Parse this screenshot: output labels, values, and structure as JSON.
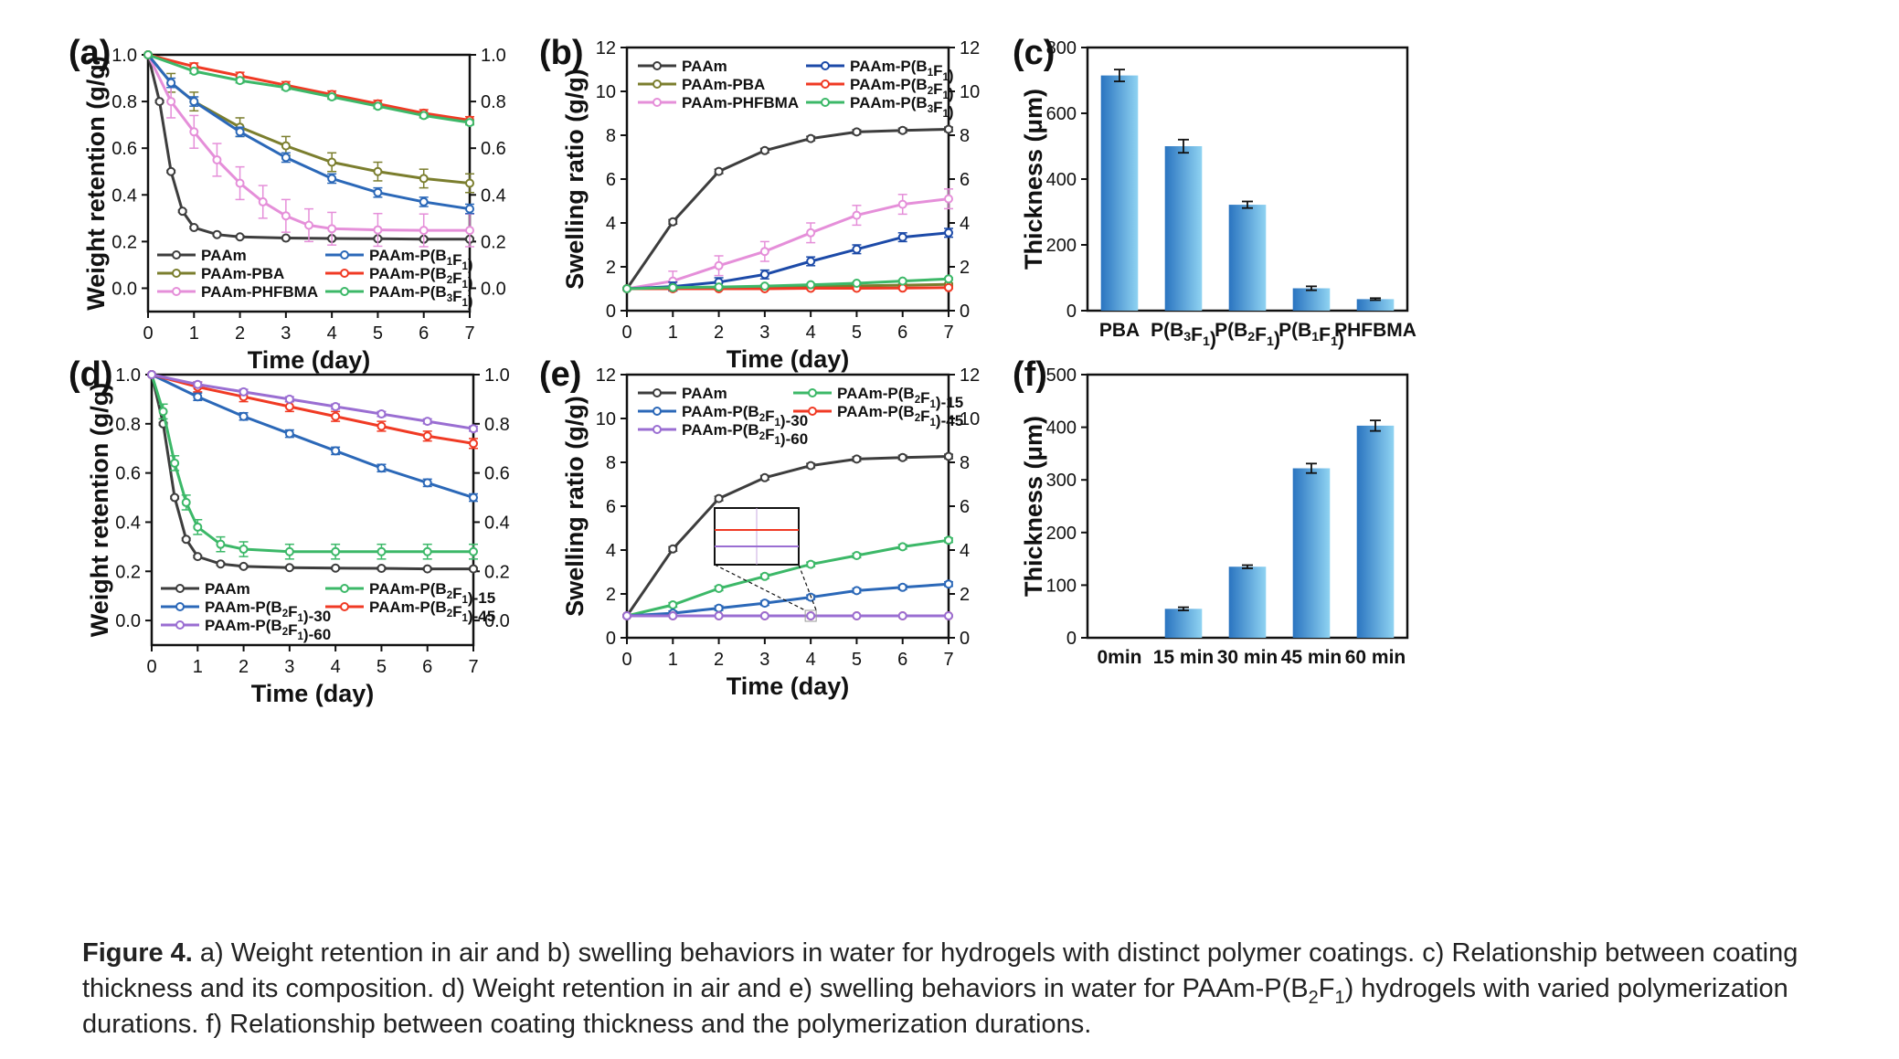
{
  "figure": {
    "panels": [
      "(a)",
      "(b)",
      "(c)",
      "(d)",
      "(e)",
      "(f)"
    ]
  },
  "caption": {
    "label": "Figure 4.",
    "text": "a) Weight retention in air and b) swelling behaviors in water for hydrogels with distinct polymer coatings. c) Relationship between coating thickness and its composition. d) Weight retention in air and e) swelling behaviors in water for PAAm-P(B2F1) hydrogels with varied polymerization durations. f) Relationship between coating thickness and the polymerization durations."
  },
  "chart_data": [
    {
      "panel": "(a)",
      "type": "line",
      "xlabel": "Time (day)",
      "ylabel": "Weight retention (g/g)",
      "xlim": [
        0,
        7
      ],
      "ylim": [
        -0.1,
        1.0
      ],
      "xticks": [
        0,
        1,
        2,
        3,
        4,
        5,
        6,
        7
      ],
      "yticks": [
        0.0,
        0.2,
        0.4,
        0.6,
        0.8,
        1.0
      ],
      "legend_location": "bottom",
      "series": [
        {
          "name": "PAAm",
          "color": "#3d3d3d",
          "error": 0.005,
          "x": [
            0,
            0.25,
            0.5,
            0.75,
            1.0,
            1.5,
            2,
            3,
            4,
            5,
            6,
            7
          ],
          "y": [
            1.0,
            0.8,
            0.5,
            0.33,
            0.26,
            0.23,
            0.22,
            0.215,
            0.213,
            0.212,
            0.21,
            0.21
          ]
        },
        {
          "name": "PAAm-PBA",
          "color": "#7b7e2e",
          "error": 0.04,
          "x": [
            0,
            0.5,
            1,
            2,
            3,
            4,
            5,
            6,
            7
          ],
          "y": [
            1.0,
            0.88,
            0.8,
            0.69,
            0.61,
            0.54,
            0.5,
            0.47,
            0.45
          ]
        },
        {
          "name": "PAAm-PHFBMA",
          "color": "#e58fd9",
          "error": 0.07,
          "x": [
            0,
            0.5,
            1,
            1.5,
            2,
            2.5,
            3,
            3.5,
            4,
            5,
            6,
            7
          ],
          "y": [
            1.0,
            0.8,
            0.67,
            0.55,
            0.45,
            0.37,
            0.31,
            0.27,
            0.255,
            0.25,
            0.248,
            0.248
          ]
        },
        {
          "name": "PAAm-P(B1F1)",
          "color": "#2b68b8",
          "error": 0.02,
          "x": [
            0,
            0.5,
            1,
            2,
            3,
            4,
            5,
            6,
            7
          ],
          "y": [
            1.0,
            0.88,
            0.8,
            0.67,
            0.56,
            0.47,
            0.41,
            0.37,
            0.34
          ]
        },
        {
          "name": "PAAm-P(B2F1)",
          "color": "#f03a24",
          "error": 0.015,
          "x": [
            0,
            1,
            2,
            3,
            4,
            5,
            6,
            7
          ],
          "y": [
            1.0,
            0.95,
            0.91,
            0.87,
            0.83,
            0.79,
            0.75,
            0.72
          ]
        },
        {
          "name": "PAAm-P(B3F1)",
          "color": "#3cb868",
          "error": 0.01,
          "x": [
            0,
            1,
            2,
            3,
            4,
            5,
            6,
            7
          ],
          "y": [
            1.0,
            0.93,
            0.89,
            0.86,
            0.82,
            0.78,
            0.74,
            0.71
          ]
        }
      ]
    },
    {
      "panel": "(b)",
      "type": "line",
      "xlabel": "Time (day)",
      "ylabel": "Swelling ratio (g/g)",
      "xlim": [
        0,
        7
      ],
      "ylim": [
        0,
        12
      ],
      "xticks": [
        0,
        1,
        2,
        3,
        4,
        5,
        6,
        7
      ],
      "yticks": [
        0,
        2,
        4,
        6,
        8,
        10,
        12
      ],
      "legend_location": "top",
      "series": [
        {
          "name": "PAAm",
          "color": "#3d3d3d",
          "error": 0.1,
          "x": [
            0,
            1,
            2,
            3,
            4,
            5,
            6,
            7
          ],
          "y": [
            1.0,
            4.05,
            6.35,
            7.3,
            7.85,
            8.15,
            8.22,
            8.27
          ]
        },
        {
          "name": "PAAm-PBA",
          "color": "#7b7e2e",
          "error": 0.05,
          "x": [
            0,
            1,
            2,
            3,
            4,
            5,
            6,
            7
          ],
          "y": [
            1.0,
            1.03,
            1.05,
            1.08,
            1.1,
            1.13,
            1.16,
            1.2
          ]
        },
        {
          "name": "PAAm-PHFBMA",
          "color": "#e58fd9",
          "error": 0.45,
          "x": [
            0,
            1,
            2,
            3,
            4,
            5,
            6,
            7
          ],
          "y": [
            1.0,
            1.35,
            2.05,
            2.7,
            3.55,
            4.35,
            4.85,
            5.1
          ]
        },
        {
          "name": "PAAm-P(B1F1)",
          "color": "#1c4aa8",
          "error": 0.2,
          "x": [
            0,
            1,
            2,
            3,
            4,
            5,
            6,
            7
          ],
          "y": [
            1.0,
            1.1,
            1.3,
            1.65,
            2.25,
            2.8,
            3.35,
            3.55
          ]
        },
        {
          "name": "PAAm-P(B2F1)",
          "color": "#f03a24",
          "error": 0.05,
          "x": [
            0,
            1,
            2,
            3,
            4,
            5,
            6,
            7
          ],
          "y": [
            1.0,
            1.0,
            1.0,
            1.0,
            1.02,
            1.02,
            1.03,
            1.05
          ]
        },
        {
          "name": "PAAm-P(B3F1)",
          "color": "#3cb868",
          "error": 0.05,
          "x": [
            0,
            1,
            2,
            3,
            4,
            5,
            6,
            7
          ],
          "y": [
            1.0,
            1.05,
            1.08,
            1.12,
            1.18,
            1.25,
            1.35,
            1.45
          ]
        }
      ]
    },
    {
      "panel": "(c)",
      "type": "bar",
      "xlabel": "",
      "ylabel": "Thickness (μm)",
      "ylim": [
        0,
        800
      ],
      "yticks": [
        0,
        200,
        400,
        600,
        800
      ],
      "categories": [
        "PBA",
        "P(B3F1)",
        "P(B2F1)",
        "P(B1F1)",
        "PHFBMA"
      ],
      "values": [
        715,
        500,
        322,
        68,
        35
      ],
      "errors": [
        18,
        20,
        10,
        6,
        3
      ]
    },
    {
      "panel": "(d)",
      "type": "line",
      "xlabel": "Time (day)",
      "ylabel": "Weight retention (g/g)",
      "xlim": [
        0,
        7
      ],
      "ylim": [
        -0.1,
        1.0
      ],
      "xticks": [
        0,
        1,
        2,
        3,
        4,
        5,
        6,
        7
      ],
      "yticks": [
        0.0,
        0.2,
        0.4,
        0.6,
        0.8,
        1.0
      ],
      "legend_location": "bottom",
      "series": [
        {
          "name": "PAAm",
          "color": "#3d3d3d",
          "error": 0.005,
          "x": [
            0,
            0.25,
            0.5,
            0.75,
            1.0,
            1.5,
            2,
            3,
            4,
            5,
            6,
            7
          ],
          "y": [
            1.0,
            0.8,
            0.5,
            0.33,
            0.26,
            0.23,
            0.22,
            0.215,
            0.213,
            0.212,
            0.21,
            0.21
          ]
        },
        {
          "name": "PAAm-P(B2F1)-15",
          "color": "#3cb868",
          "error": 0.03,
          "x": [
            0,
            0.25,
            0.5,
            0.75,
            1.0,
            1.5,
            2,
            3,
            4,
            5,
            6,
            7
          ],
          "y": [
            1.0,
            0.85,
            0.64,
            0.48,
            0.38,
            0.31,
            0.29,
            0.28,
            0.28,
            0.28,
            0.28,
            0.28
          ]
        },
        {
          "name": "PAAm-P(B2F1)-30",
          "color": "#2b68b8",
          "error": 0.015,
          "x": [
            0,
            1,
            2,
            3,
            4,
            5,
            6,
            7
          ],
          "y": [
            1.0,
            0.91,
            0.83,
            0.76,
            0.69,
            0.62,
            0.56,
            0.5
          ]
        },
        {
          "name": "PAAm-P(B2F1)-45",
          "color": "#f03a24",
          "error": 0.02,
          "x": [
            0,
            1,
            2,
            3,
            4,
            5,
            6,
            7
          ],
          "y": [
            1.0,
            0.95,
            0.91,
            0.87,
            0.83,
            0.79,
            0.75,
            0.72
          ]
        },
        {
          "name": "PAAm-P(B2F1)-60",
          "color": "#9a6ed2",
          "error": 0.01,
          "x": [
            0,
            1,
            2,
            3,
            4,
            5,
            6,
            7
          ],
          "y": [
            1.0,
            0.96,
            0.93,
            0.9,
            0.87,
            0.84,
            0.81,
            0.78
          ]
        }
      ]
    },
    {
      "panel": "(e)",
      "type": "line",
      "xlabel": "Time (day)",
      "ylabel": "Swelling ratio (g/g)",
      "xlim": [
        0,
        7
      ],
      "ylim": [
        0,
        12
      ],
      "xticks": [
        0,
        1,
        2,
        3,
        4,
        5,
        6,
        7
      ],
      "yticks": [
        0,
        2,
        4,
        6,
        8,
        10,
        12
      ],
      "legend_location": "top",
      "series": [
        {
          "name": "PAAm",
          "color": "#3d3d3d",
          "error": 0.1,
          "x": [
            0,
            1,
            2,
            3,
            4,
            5,
            6,
            7
          ],
          "y": [
            1.0,
            4.05,
            6.35,
            7.3,
            7.85,
            8.15,
            8.22,
            8.27
          ]
        },
        {
          "name": "PAAm-P(B2F1)-15",
          "color": "#3cb868",
          "error": 0.1,
          "x": [
            0,
            1,
            2,
            3,
            4,
            5,
            6,
            7
          ],
          "y": [
            1.0,
            1.5,
            2.25,
            2.8,
            3.35,
            3.75,
            4.15,
            4.45
          ]
        },
        {
          "name": "PAAm-P(B2F1)-30",
          "color": "#2b68b8",
          "error": 0.1,
          "x": [
            0,
            1,
            2,
            3,
            4,
            5,
            6,
            7
          ],
          "y": [
            1.0,
            1.12,
            1.35,
            1.58,
            1.85,
            2.15,
            2.3,
            2.45
          ]
        },
        {
          "name": "PAAm-P(B2F1)-45",
          "color": "#f03a24",
          "error": 0.02,
          "x": [
            0,
            1,
            2,
            3,
            4,
            5,
            6,
            7
          ],
          "y": [
            1.0,
            1.0,
            1.0,
            1.0,
            1.0,
            1.0,
            1.0,
            1.0
          ]
        },
        {
          "name": "PAAm-P(B2F1)-60",
          "color": "#9a6ed2",
          "error": 0.02,
          "x": [
            0,
            1,
            2,
            3,
            4,
            5,
            6,
            7
          ],
          "y": [
            1.0,
            1.0,
            1.0,
            1.0,
            1.0,
            1.0,
            1.0,
            1.0
          ]
        }
      ]
    },
    {
      "panel": "(f)",
      "type": "bar",
      "xlabel": "",
      "ylabel": "Thickness (μm)",
      "ylim": [
        0,
        500
      ],
      "yticks": [
        0,
        100,
        200,
        300,
        400,
        500
      ],
      "categories": [
        "0min",
        "15 min",
        "30 min",
        "45 min",
        "60 min"
      ],
      "values": [
        0,
        55,
        135,
        322,
        403
      ],
      "errors": [
        0,
        3,
        3,
        9,
        10
      ]
    }
  ]
}
